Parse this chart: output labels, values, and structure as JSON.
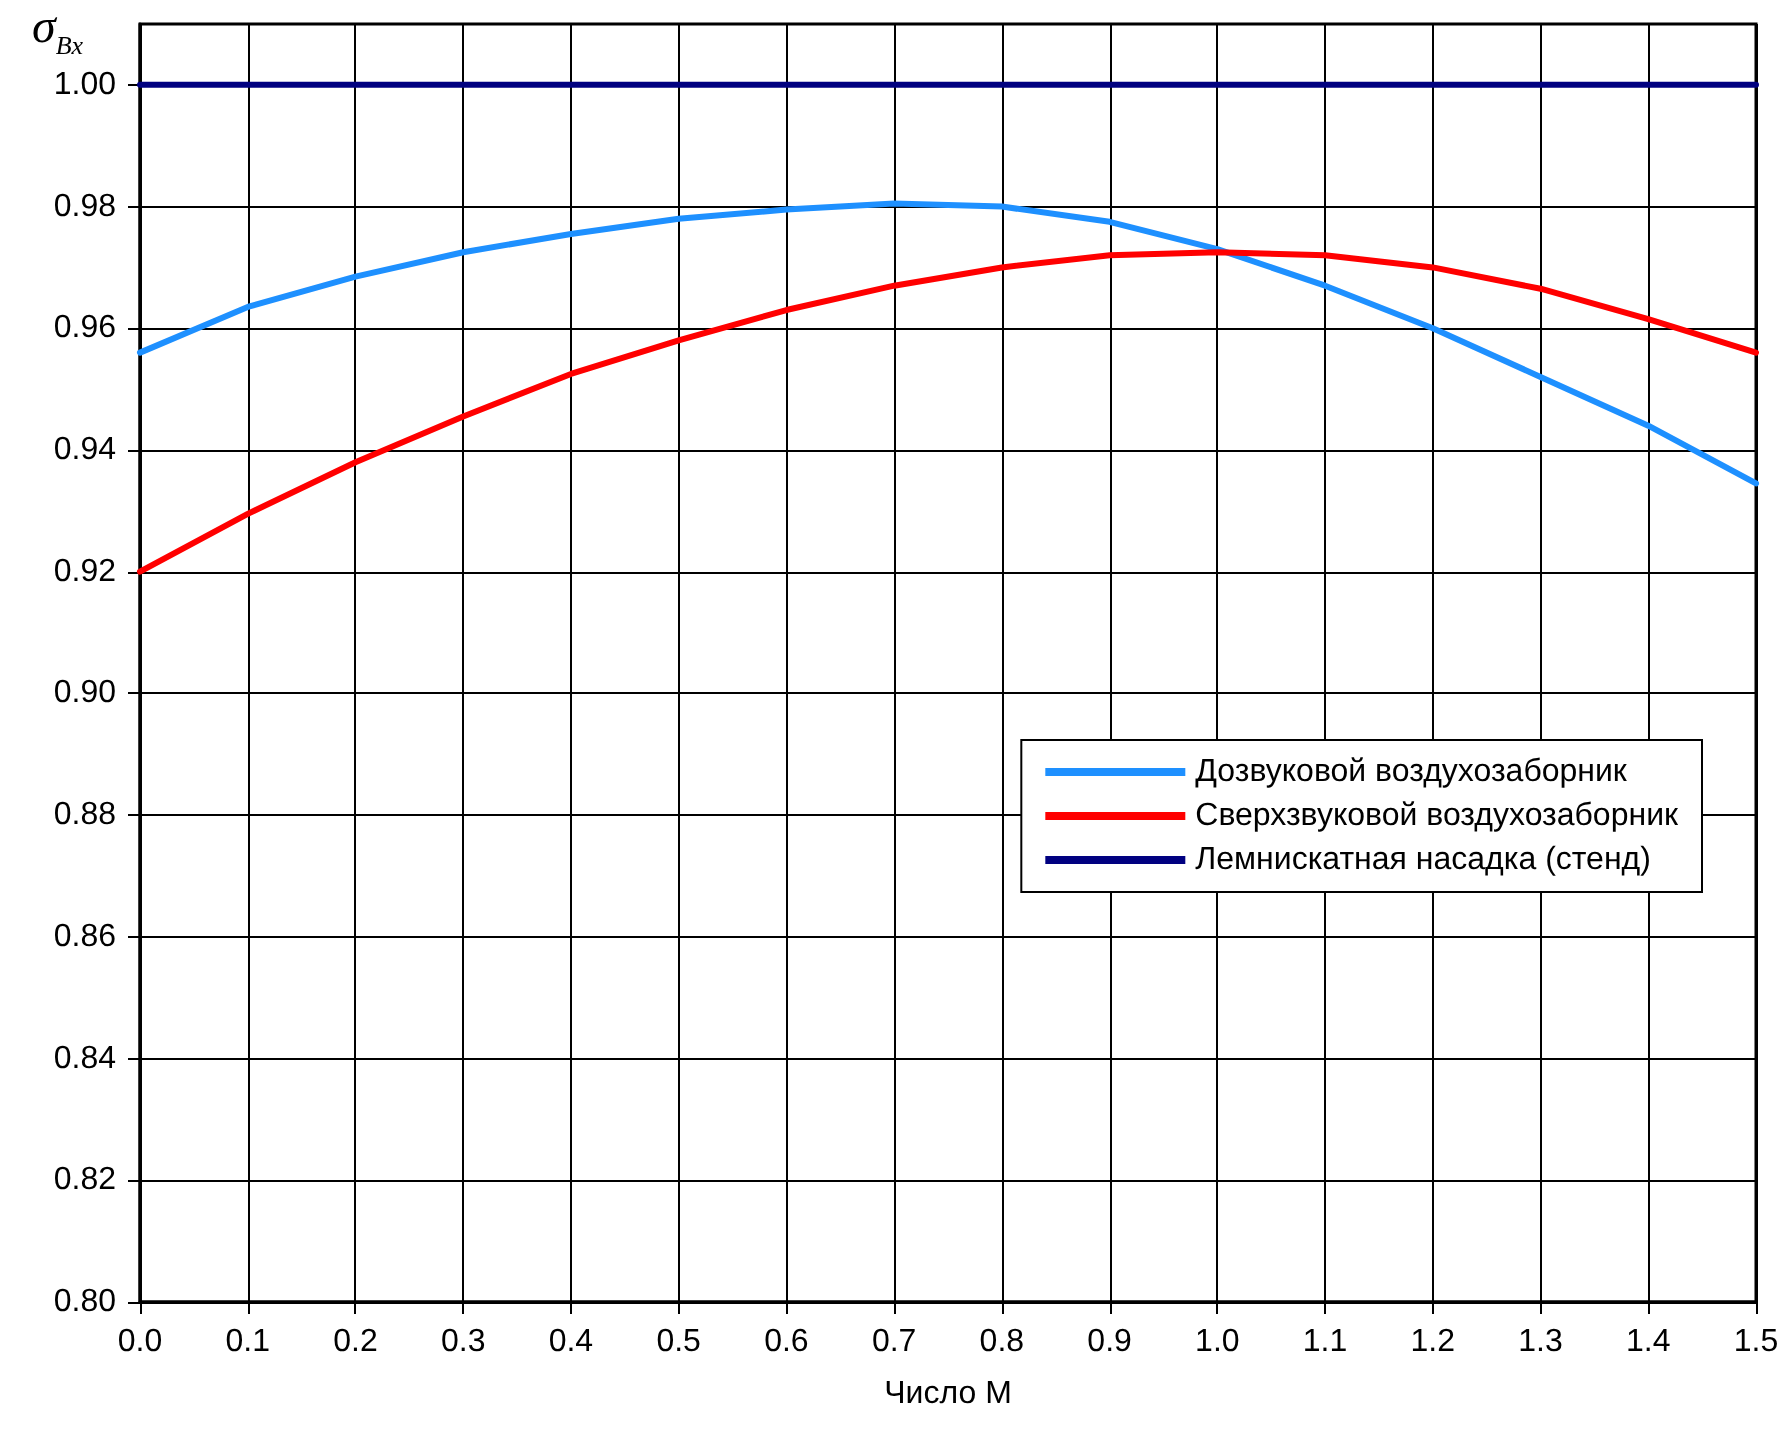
{
  "chart_data": {
    "type": "line",
    "xlabel": "Число M",
    "ylabel": "σ$_{Bx}$",
    "x": [
      0,
      0.1,
      0.2,
      0.3,
      0.4,
      0.5,
      0.6,
      0.7,
      0.8,
      0.9,
      1.0,
      1.1,
      1.2,
      1.3,
      1.4,
      1.5
    ],
    "series": [
      {
        "name": "Дозвуковой воздухозаборник",
        "color": "#1e90ff",
        "values": [
          0.956,
          0.9635,
          0.9685,
          0.9725,
          0.9755,
          0.978,
          0.9795,
          0.9805,
          0.98,
          0.9775,
          0.973,
          0.967,
          0.96,
          0.952,
          0.944,
          0.9345
        ]
      },
      {
        "name": "Сверхзвуковой воздухозаборник",
        "color": "#ff0000",
        "values": [
          0.92,
          0.9295,
          0.938,
          0.9455,
          0.9525,
          0.958,
          0.963,
          0.967,
          0.97,
          0.972,
          0.9725,
          0.972,
          0.97,
          0.9665,
          0.9615,
          0.956
        ]
      },
      {
        "name": "Лемнискатная насадка (стенд)",
        "color": "#000080",
        "values": [
          1,
          1,
          1,
          1,
          1,
          1,
          1,
          1,
          1,
          1,
          1,
          1,
          1,
          1,
          1,
          1
        ]
      }
    ],
    "xlim": [
      0,
      1.5
    ],
    "xticks": [
      {
        "value": 0,
        "label": "0.0"
      },
      {
        "value": 0.1,
        "label": "0.1"
      },
      {
        "value": 0.2,
        "label": "0.2"
      },
      {
        "value": 0.3,
        "label": "0.3"
      },
      {
        "value": 0.4,
        "label": "0.4"
      },
      {
        "value": 0.5,
        "label": "0.5"
      },
      {
        "value": 0.6,
        "label": "0.6"
      },
      {
        "value": 0.7,
        "label": "0.7"
      },
      {
        "value": 0.8,
        "label": "0.8"
      },
      {
        "value": 0.9,
        "label": "0.9"
      },
      {
        "value": 1,
        "label": "1.0"
      },
      {
        "value": 1.1,
        "label": "1.1"
      },
      {
        "value": 1.2,
        "label": "1.2"
      },
      {
        "value": 1.3,
        "label": "1.3"
      },
      {
        "value": 1.4,
        "label": "1.4"
      },
      {
        "value": 1.5,
        "label": "1.5"
      }
    ],
    "ylim": [
      0.8,
      1.01
    ],
    "yticks": [
      {
        "value": 0.8,
        "label": "0.80"
      },
      {
        "value": 0.82,
        "label": "0.82"
      },
      {
        "value": 0.84,
        "label": "0.84"
      },
      {
        "value": 0.86,
        "label": "0.86"
      },
      {
        "value": 0.88,
        "label": "0.88"
      },
      {
        "value": 0.9,
        "label": "0.90"
      },
      {
        "value": 0.92,
        "label": "0.92"
      },
      {
        "value": 0.94,
        "label": "0.94"
      },
      {
        "value": 0.96,
        "label": "0.96"
      },
      {
        "value": 0.98,
        "label": "0.98"
      },
      {
        "value": 1,
        "label": "1.00"
      }
    ],
    "grid": true,
    "legend": "right",
    "marker": "none",
    "line_style": "solid"
  }
}
